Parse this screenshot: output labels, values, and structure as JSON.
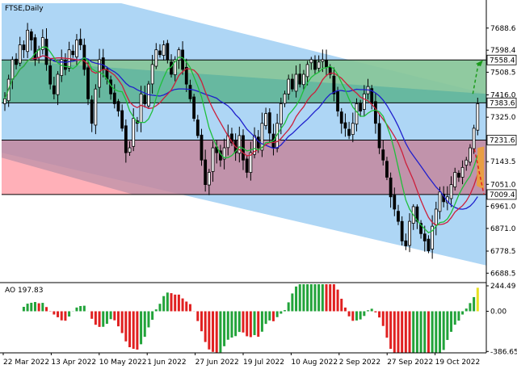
{
  "chart_data": {
    "type": "candlestick",
    "title": "FTSE,Daily",
    "ylim": [
      6650,
      7790
    ],
    "price_ticks": [
      "7688.6",
      "7598.4",
      "7508.5",
      "7416.0",
      "7325.0",
      "7143.5",
      "7051.0",
      "6961.0",
      "6871.0",
      "6778.5",
      "6688.5"
    ],
    "price_tags": [
      {
        "label": "7558.4",
        "value": 7558.4
      },
      {
        "label": "7383.6",
        "value": 7383.6
      },
      {
        "label": "7231.6",
        "value": 7231.6
      },
      {
        "label": "7009.4",
        "value": 7009.4
      }
    ],
    "date_labels": [
      "22 Mar 2022",
      "13 Apr 2022",
      "10 May 2022",
      "1 Jun 2022",
      "27 Jun 2022",
      "19 Jul 2022",
      "10 Aug 2022",
      "2 Sep 2022",
      "27 Sep 2022",
      "19 Oct 2022"
    ],
    "zones": [
      {
        "name": "upper-green",
        "from": 7383.6,
        "to": 7558.4,
        "color": "#5bb391"
      },
      {
        "name": "middle-blue",
        "from": 7231.6,
        "to": 7383.6,
        "color": "#aed6f5"
      },
      {
        "name": "lower-maroon",
        "from": 7009.4,
        "to": 7231.6,
        "color": "#c4879d"
      }
    ],
    "closes": [
      7400,
      7480,
      7560,
      7540,
      7620,
      7600,
      7680,
      7640,
      7560,
      7600,
      7650,
      7540,
      7460,
      7420,
      7500,
      7560,
      7520,
      7600,
      7580,
      7640,
      7620,
      7520,
      7400,
      7300,
      7440,
      7560,
      7520,
      7480,
      7420,
      7380,
      7350,
      7280,
      7180,
      7200,
      7320,
      7300,
      7420,
      7380,
      7460,
      7540,
      7600,
      7580,
      7620,
      7560,
      7500,
      7560,
      7600,
      7520,
      7460,
      7400,
      7320,
      7250,
      7150,
      7050,
      7100,
      7200,
      7180,
      7150,
      7200,
      7250,
      7220,
      7180,
      7250,
      7150,
      7100,
      7180,
      7250,
      7200,
      7300,
      7340,
      7260,
      7200,
      7300,
      7380,
      7420,
      7480,
      7440,
      7500,
      7460,
      7500,
      7540,
      7560,
      7520,
      7550,
      7560,
      7530,
      7500,
      7420,
      7350,
      7300,
      7280,
      7250,
      7300,
      7380,
      7350,
      7420,
      7450,
      7380,
      7300,
      7200,
      7150,
      7080,
      7000,
      6950,
      6900,
      6820,
      6800,
      6900,
      6960,
      6900,
      6850,
      6820,
      6780,
      6880,
      6950,
      7020,
      6980,
      7000,
      7050,
      7100,
      7080,
      7120,
      7150,
      7200,
      7280,
      7380
    ],
    "moving_averages": [
      {
        "color": "#1f1fcc",
        "period": 21
      },
      {
        "color": "#cc1f3b",
        "period": 13
      },
      {
        "color": "#1fbf3b",
        "period": 8
      }
    ],
    "oscillator": {
      "label": "AO 197.83",
      "ticks": [
        "244.49",
        "0.00",
        "-386.65"
      ],
      "ylim": [
        -400,
        260
      ],
      "up_color": "#22a33a",
      "down_color": "#e02020",
      "last_color": "#e8e020"
    }
  }
}
